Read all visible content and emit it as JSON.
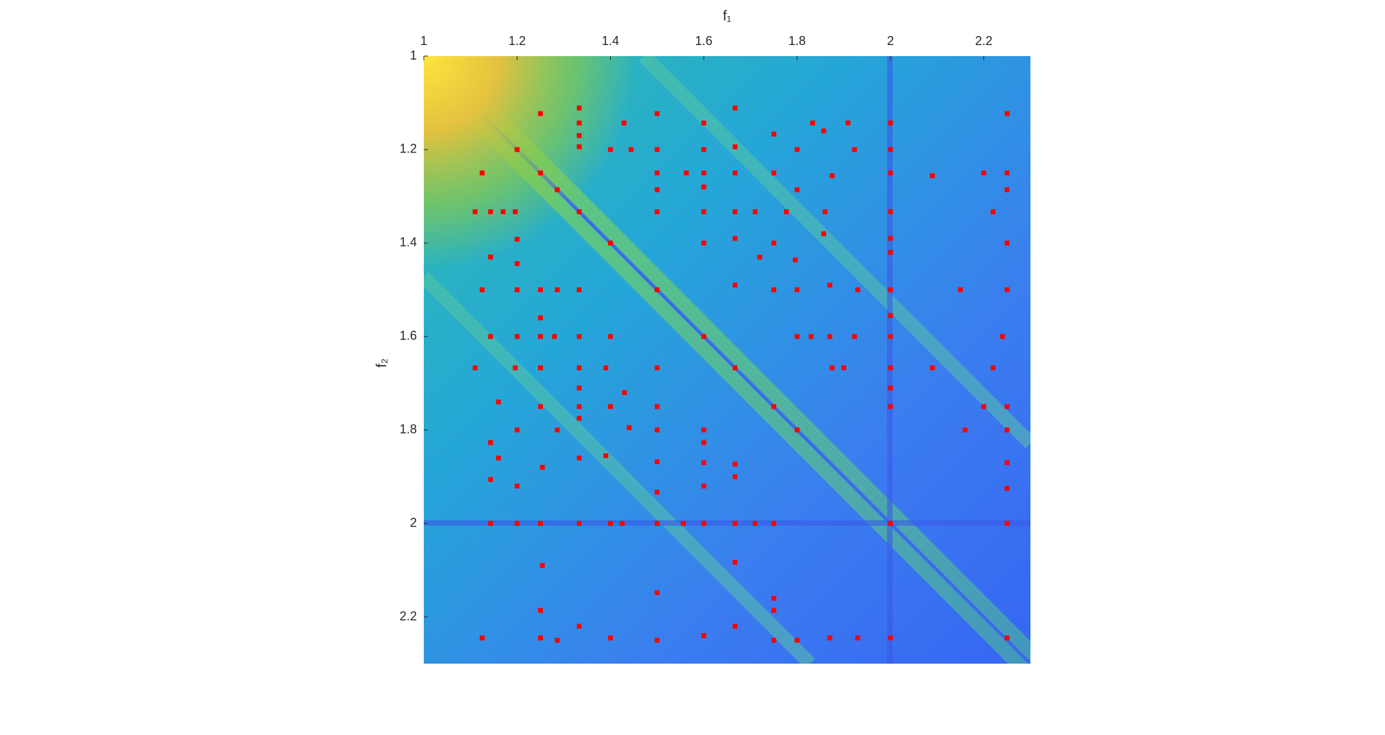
{
  "chart_data": {
    "type": "scatter",
    "xlabel": "f₁",
    "ylabel": "f₂",
    "xlim": [
      1,
      2.3
    ],
    "ylim": [
      1,
      2.3
    ],
    "xticks": [
      1,
      1.2,
      1.4,
      1.6,
      1.8,
      2,
      2.2
    ],
    "yticks": [
      1,
      1.2,
      1.4,
      1.6,
      1.8,
      2,
      2.2
    ],
    "x_axis_position": "top",
    "y_direction": "reverse",
    "color": "#ff0000",
    "x": [
      1.25,
      1.5,
      2.25,
      1.667,
      1.333,
      1.333,
      1.429,
      1.6,
      1.833,
      1.909,
      2,
      1.857,
      1.333,
      1.333,
      1.2,
      1.4,
      1.444,
      1.5,
      1.6,
      1.923,
      2,
      1.8,
      1.667,
      1.75,
      1.125,
      1.25,
      1.5,
      1.5625,
      1.6,
      1.667,
      1.75,
      2,
      2.2,
      2.25,
      1.875,
      2.09,
      1.5,
      1.286,
      1.6,
      1.8,
      2.25,
      1.11,
      1.143,
      1.17,
      1.196,
      1.333,
      1.5,
      1.6,
      1.667,
      1.71,
      1.777,
      1.86,
      2,
      2.22,
      1.2,
      1.4,
      1.6,
      1.667,
      1.75,
      1.857,
      2,
      1.143,
      1.2,
      1.72,
      1.796,
      2,
      2.25,
      1.125,
      1.2,
      1.25,
      1.286,
      1.333,
      1.5,
      1.667,
      1.75,
      1.8,
      1.87,
      1.93,
      2,
      2.15,
      2.25,
      1.25,
      2,
      1.143,
      1.2,
      1.25,
      1.28,
      1.333,
      1.4,
      1.6,
      1.8,
      1.83,
      1.87,
      1.923,
      2,
      2.24,
      1.11,
      1.196,
      1.25,
      1.333,
      1.39,
      1.5,
      1.667,
      1.875,
      1.9,
      2,
      2.09,
      2.22,
      1.333,
      1.43,
      2,
      1.16,
      1.25,
      1.333,
      1.4,
      1.5,
      1.75,
      2,
      2.2,
      2.25,
      1.333,
      1.44,
      1.2,
      1.286,
      1.5,
      1.6,
      1.8,
      2.16,
      2.25,
      1.6,
      1.143,
      1.16,
      1.333,
      1.39,
      1.5,
      1.6,
      1.667,
      1.254,
      2.25,
      1.143,
      1.2,
      1.667,
      1.5,
      1.6,
      2.25,
      1.143,
      1.2,
      1.25,
      1.333,
      1.4,
      1.425,
      1.5,
      1.556,
      1.6,
      1.667,
      1.71,
      1.75,
      2,
      2.25,
      1.254,
      1.667,
      1.5,
      1.75,
      1.25,
      1.75,
      1.333,
      1.667,
      1.125,
      1.25,
      1.286,
      1.4,
      1.5,
      1.6,
      1.75,
      1.8,
      1.87,
      1.93,
      2,
      2.25
    ],
    "values": [
      1.123,
      1.123,
      1.123,
      1.111,
      1.111,
      1.143,
      1.143,
      1.143,
      1.143,
      1.143,
      1.143,
      1.16,
      1.17,
      1.194,
      1.2,
      1.2,
      1.2,
      1.2,
      1.2,
      1.2,
      1.2,
      1.2,
      1.194,
      1.167,
      1.25,
      1.25,
      1.25,
      1.25,
      1.25,
      1.25,
      1.25,
      1.25,
      1.25,
      1.25,
      1.256,
      1.256,
      1.286,
      1.286,
      1.28,
      1.286,
      1.286,
      1.333,
      1.333,
      1.333,
      1.333,
      1.333,
      1.333,
      1.333,
      1.333,
      1.333,
      1.333,
      1.333,
      1.333,
      1.333,
      1.392,
      1.4,
      1.4,
      1.39,
      1.4,
      1.38,
      1.39,
      1.43,
      1.444,
      1.43,
      1.436,
      1.42,
      1.4,
      1.5,
      1.5,
      1.5,
      1.5,
      1.5,
      1.5,
      1.49,
      1.5,
      1.5,
      1.49,
      1.5,
      1.5,
      1.5,
      1.5,
      1.56,
      1.555,
      1.6,
      1.6,
      1.6,
      1.6,
      1.6,
      1.6,
      1.6,
      1.6,
      1.6,
      1.6,
      1.6,
      1.6,
      1.6,
      1.667,
      1.667,
      1.667,
      1.667,
      1.667,
      1.667,
      1.667,
      1.667,
      1.667,
      1.667,
      1.667,
      1.667,
      1.71,
      1.72,
      1.71,
      1.74,
      1.75,
      1.75,
      1.75,
      1.75,
      1.75,
      1.75,
      1.75,
      1.75,
      1.775,
      1.795,
      1.8,
      1.8,
      1.8,
      1.8,
      1.8,
      1.8,
      1.8,
      1.827,
      1.827,
      1.86,
      1.86,
      1.855,
      1.868,
      1.87,
      1.873,
      1.88,
      1.87,
      1.906,
      1.92,
      1.9,
      1.933,
      1.92,
      1.925,
      2,
      2,
      2,
      2,
      2,
      2,
      2,
      2,
      2,
      2,
      2,
      2,
      2,
      2,
      2.09,
      2.083,
      2.148,
      2.16,
      2.186,
      2.186,
      2.22,
      2.22,
      2.245,
      2.245,
      2.25,
      2.245,
      2.25,
      2.24,
      2.25,
      2.25,
      2.245,
      2.245,
      2.245,
      2.245
    ]
  }
}
